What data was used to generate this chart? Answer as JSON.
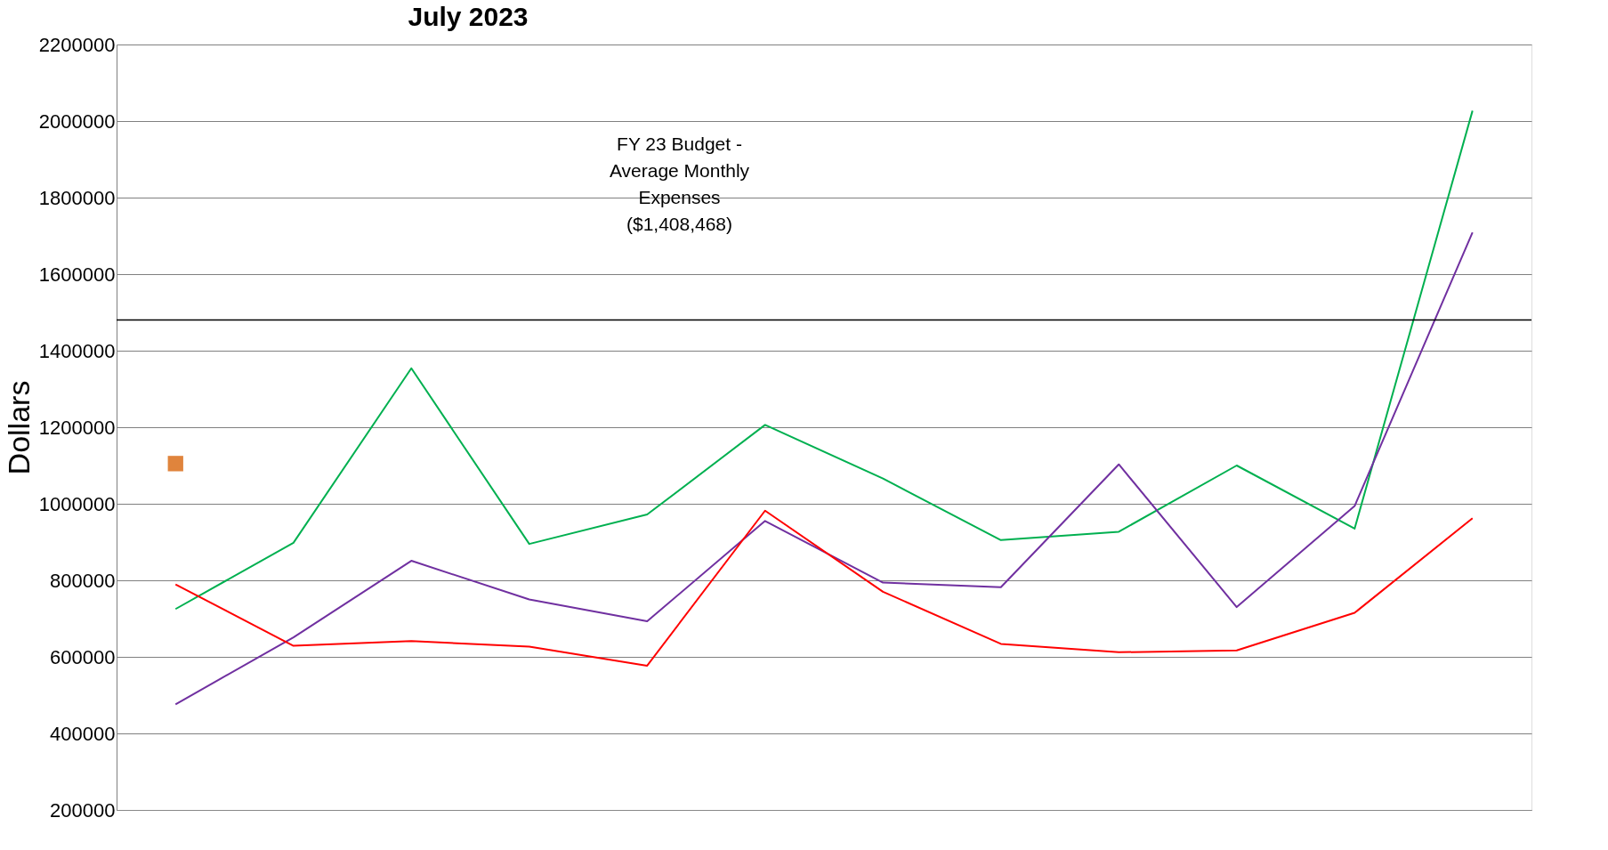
{
  "chart_data": {
    "type": "line",
    "title": "July 2023",
    "ylabel": "Dollars",
    "categories": [
      null,
      null,
      null,
      null,
      null,
      null,
      null,
      null,
      null,
      null,
      null,
      null
    ],
    "series": [
      {
        "color": "#00b050",
        "values": [
          725000,
          898000,
          1354000,
          895000,
          972000,
          1206000,
          1066000,
          905000,
          927000,
          1100000,
          935000,
          2027000
        ]
      },
      {
        "color": "#7030a0",
        "values": [
          476000,
          651000,
          851000,
          750000,
          693000,
          955000,
          794000,
          782000,
          1103000,
          730000,
          994000,
          1709000
        ]
      },
      {
        "color": "#ff0000",
        "values": [
          789000,
          629000,
          641000,
          627000,
          577000,
          982000,
          770000,
          634000,
          612000,
          617000,
          715000,
          962000
        ]
      },
      {
        "type": "scatter",
        "marker": "square",
        "color": "#e0843c",
        "values": [
          1105000,
          null,
          null,
          null,
          null,
          null,
          null,
          null,
          null,
          null,
          null,
          null
        ]
      }
    ],
    "ylim": [
      200000,
      2200000
    ],
    "yticks": [
      200000,
      400000,
      600000,
      800000,
      1000000,
      1200000,
      1400000,
      1600000,
      1800000,
      2000000,
      2200000
    ],
    "grid": "y",
    "tick_labels": "y",
    "ref_lines": [
      {
        "axis": "y",
        "value": 1480000,
        "label": "FY 23 Budget - Average Monthly Expenses ($1,408,468)",
        "color": "#000000"
      }
    ]
  }
}
